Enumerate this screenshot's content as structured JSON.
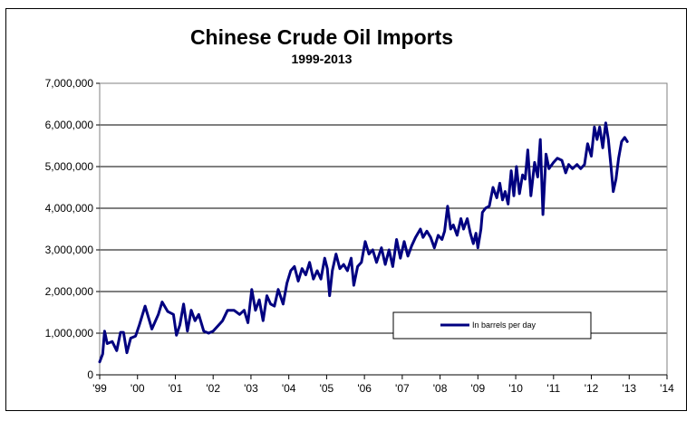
{
  "chart_data": {
    "type": "line",
    "title": "Chinese Crude Oil Imports",
    "subtitle": "1999-2013",
    "xlabel": "",
    "ylabel": "",
    "xlim": [
      1999,
      2014
    ],
    "ylim": [
      0,
      7000000
    ],
    "grid": {
      "horizontal": true,
      "vertical": false
    },
    "legend": "center-right",
    "y_ticks": [
      {
        "value": 0,
        "label": "0"
      },
      {
        "value": 1000000,
        "label": "1,000,000"
      },
      {
        "value": 2000000,
        "label": "2,000,000"
      },
      {
        "value": 3000000,
        "label": "3,000,000"
      },
      {
        "value": 4000000,
        "label": "4,000,000"
      },
      {
        "value": 5000000,
        "label": "5,000,000"
      },
      {
        "value": 6000000,
        "label": "6,000,000"
      },
      {
        "value": 7000000,
        "label": "7,000,000"
      }
    ],
    "x_ticks": [
      {
        "value": 1999,
        "label": "'99"
      },
      {
        "value": 2000,
        "label": "'00"
      },
      {
        "value": 2001,
        "label": "'01"
      },
      {
        "value": 2002,
        "label": "'02"
      },
      {
        "value": 2003,
        "label": "'03"
      },
      {
        "value": 2004,
        "label": "'04"
      },
      {
        "value": 2005,
        "label": "'05"
      },
      {
        "value": 2006,
        "label": "'06"
      },
      {
        "value": 2007,
        "label": "'07"
      },
      {
        "value": 2008,
        "label": "'08"
      },
      {
        "value": 2009,
        "label": "'09"
      },
      {
        "value": 2010,
        "label": "'10"
      },
      {
        "value": 2011,
        "label": "'11"
      },
      {
        "value": 2012,
        "label": "'12"
      },
      {
        "value": 2013,
        "label": "'13"
      },
      {
        "value": 2014,
        "label": "'14"
      }
    ],
    "series": [
      {
        "name": "In barrels per day",
        "color": "#000080",
        "points": [
          [
            1999.0,
            310000
          ],
          [
            1999.08,
            500000
          ],
          [
            1999.13,
            1050000
          ],
          [
            1999.2,
            750000
          ],
          [
            1999.33,
            800000
          ],
          [
            1999.45,
            580000
          ],
          [
            1999.55,
            1020000
          ],
          [
            1999.63,
            1020000
          ],
          [
            1999.72,
            530000
          ],
          [
            1999.82,
            880000
          ],
          [
            1999.95,
            930000
          ],
          [
            2000.05,
            1200000
          ],
          [
            2000.2,
            1650000
          ],
          [
            2000.38,
            1100000
          ],
          [
            2000.55,
            1450000
          ],
          [
            2000.65,
            1750000
          ],
          [
            2000.8,
            1520000
          ],
          [
            2000.95,
            1450000
          ],
          [
            2001.03,
            950000
          ],
          [
            2001.12,
            1200000
          ],
          [
            2001.22,
            1700000
          ],
          [
            2001.32,
            1050000
          ],
          [
            2001.42,
            1550000
          ],
          [
            2001.52,
            1300000
          ],
          [
            2001.62,
            1450000
          ],
          [
            2001.75,
            1050000
          ],
          [
            2001.88,
            1000000
          ],
          [
            2002.0,
            1050000
          ],
          [
            2002.1,
            1150000
          ],
          [
            2002.25,
            1300000
          ],
          [
            2002.38,
            1550000
          ],
          [
            2002.55,
            1550000
          ],
          [
            2002.7,
            1450000
          ],
          [
            2002.82,
            1550000
          ],
          [
            2002.92,
            1250000
          ],
          [
            2003.02,
            2050000
          ],
          [
            2003.12,
            1550000
          ],
          [
            2003.22,
            1800000
          ],
          [
            2003.32,
            1300000
          ],
          [
            2003.42,
            1900000
          ],
          [
            2003.52,
            1700000
          ],
          [
            2003.62,
            1650000
          ],
          [
            2003.72,
            2050000
          ],
          [
            2003.85,
            1700000
          ],
          [
            2003.95,
            2200000
          ],
          [
            2004.05,
            2500000
          ],
          [
            2004.15,
            2600000
          ],
          [
            2004.25,
            2250000
          ],
          [
            2004.35,
            2550000
          ],
          [
            2004.45,
            2400000
          ],
          [
            2004.55,
            2700000
          ],
          [
            2004.65,
            2300000
          ],
          [
            2004.75,
            2500000
          ],
          [
            2004.85,
            2300000
          ],
          [
            2004.95,
            2800000
          ],
          [
            2005.02,
            2550000
          ],
          [
            2005.08,
            1900000
          ],
          [
            2005.15,
            2500000
          ],
          [
            2005.25,
            2900000
          ],
          [
            2005.35,
            2550000
          ],
          [
            2005.45,
            2650000
          ],
          [
            2005.55,
            2500000
          ],
          [
            2005.65,
            2800000
          ],
          [
            2005.72,
            2150000
          ],
          [
            2005.82,
            2600000
          ],
          [
            2005.92,
            2700000
          ],
          [
            2006.02,
            3200000
          ],
          [
            2006.12,
            2900000
          ],
          [
            2006.22,
            3000000
          ],
          [
            2006.32,
            2700000
          ],
          [
            2006.45,
            3050000
          ],
          [
            2006.55,
            2650000
          ],
          [
            2006.65,
            3000000
          ],
          [
            2006.75,
            2600000
          ],
          [
            2006.85,
            3250000
          ],
          [
            2006.95,
            2800000
          ],
          [
            2007.05,
            3200000
          ],
          [
            2007.15,
            2850000
          ],
          [
            2007.25,
            3100000
          ],
          [
            2007.35,
            3300000
          ],
          [
            2007.48,
            3500000
          ],
          [
            2007.55,
            3300000
          ],
          [
            2007.65,
            3450000
          ],
          [
            2007.75,
            3300000
          ],
          [
            2007.85,
            3050000
          ],
          [
            2007.95,
            3350000
          ],
          [
            2008.05,
            3250000
          ],
          [
            2008.12,
            3450000
          ],
          [
            2008.2,
            4050000
          ],
          [
            2008.28,
            3500000
          ],
          [
            2008.35,
            3600000
          ],
          [
            2008.45,
            3350000
          ],
          [
            2008.55,
            3750000
          ],
          [
            2008.62,
            3500000
          ],
          [
            2008.72,
            3750000
          ],
          [
            2008.8,
            3400000
          ],
          [
            2008.88,
            3150000
          ],
          [
            2008.95,
            3400000
          ],
          [
            2009.0,
            3050000
          ],
          [
            2009.08,
            3500000
          ],
          [
            2009.12,
            3900000
          ],
          [
            2009.2,
            4000000
          ],
          [
            2009.3,
            4050000
          ],
          [
            2009.4,
            4500000
          ],
          [
            2009.5,
            4250000
          ],
          [
            2009.58,
            4600000
          ],
          [
            2009.65,
            4200000
          ],
          [
            2009.72,
            4400000
          ],
          [
            2009.8,
            4100000
          ],
          [
            2009.88,
            4900000
          ],
          [
            2009.95,
            4300000
          ],
          [
            2010.02,
            5000000
          ],
          [
            2010.1,
            4350000
          ],
          [
            2010.18,
            4800000
          ],
          [
            2010.25,
            4700000
          ],
          [
            2010.32,
            5400000
          ],
          [
            2010.4,
            4300000
          ],
          [
            2010.5,
            5100000
          ],
          [
            2010.58,
            4750000
          ],
          [
            2010.65,
            5650000
          ],
          [
            2010.72,
            3850000
          ],
          [
            2010.8,
            5300000
          ],
          [
            2010.88,
            4950000
          ],
          [
            2011.0,
            5100000
          ],
          [
            2011.1,
            5200000
          ],
          [
            2011.22,
            5150000
          ],
          [
            2011.32,
            4850000
          ],
          [
            2011.4,
            5050000
          ],
          [
            2011.5,
            4950000
          ],
          [
            2011.62,
            5050000
          ],
          [
            2011.72,
            4950000
          ],
          [
            2011.82,
            5050000
          ],
          [
            2011.9,
            5550000
          ],
          [
            2012.0,
            5250000
          ],
          [
            2012.08,
            5950000
          ],
          [
            2012.15,
            5650000
          ],
          [
            2012.22,
            5950000
          ],
          [
            2012.3,
            5450000
          ],
          [
            2012.38,
            6050000
          ],
          [
            2012.45,
            5650000
          ],
          [
            2012.52,
            5000000
          ],
          [
            2012.58,
            4400000
          ],
          [
            2012.65,
            4700000
          ],
          [
            2012.72,
            5200000
          ],
          [
            2012.8,
            5600000
          ],
          [
            2012.88,
            5700000
          ],
          [
            2012.95,
            5600000
          ]
        ]
      }
    ]
  }
}
